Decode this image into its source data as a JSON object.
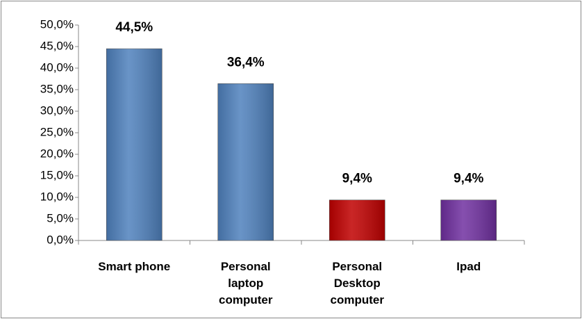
{
  "chart_data": {
    "type": "bar",
    "categories": [
      "Smart phone",
      "Personal laptop computer",
      "Personal Desktop computer",
      "Ipad"
    ],
    "values": [
      44.5,
      36.4,
      9.4,
      9.4
    ],
    "value_labels": [
      "44,5%",
      "36,4%",
      "9,4%",
      "9,4%"
    ],
    "colors": [
      "#4f81bd",
      "#4f81bd",
      "#c00000",
      "#7030a0"
    ],
    "ylim": [
      0,
      50
    ],
    "yticks": [
      {
        "value": 0,
        "label": "0,0%"
      },
      {
        "value": 5,
        "label": "5,0%"
      },
      {
        "value": 10,
        "label": "10,0%"
      },
      {
        "value": 15,
        "label": "15,0%"
      },
      {
        "value": 20,
        "label": "20,0%"
      },
      {
        "value": 25,
        "label": "25,0%"
      },
      {
        "value": 30,
        "label": "30,0%"
      },
      {
        "value": 35,
        "label": "35,0%"
      },
      {
        "value": 40,
        "label": "40,0%"
      },
      {
        "value": 45,
        "label": "45,0%"
      },
      {
        "value": 50,
        "label": "50,0%"
      }
    ],
    "grid": false
  }
}
